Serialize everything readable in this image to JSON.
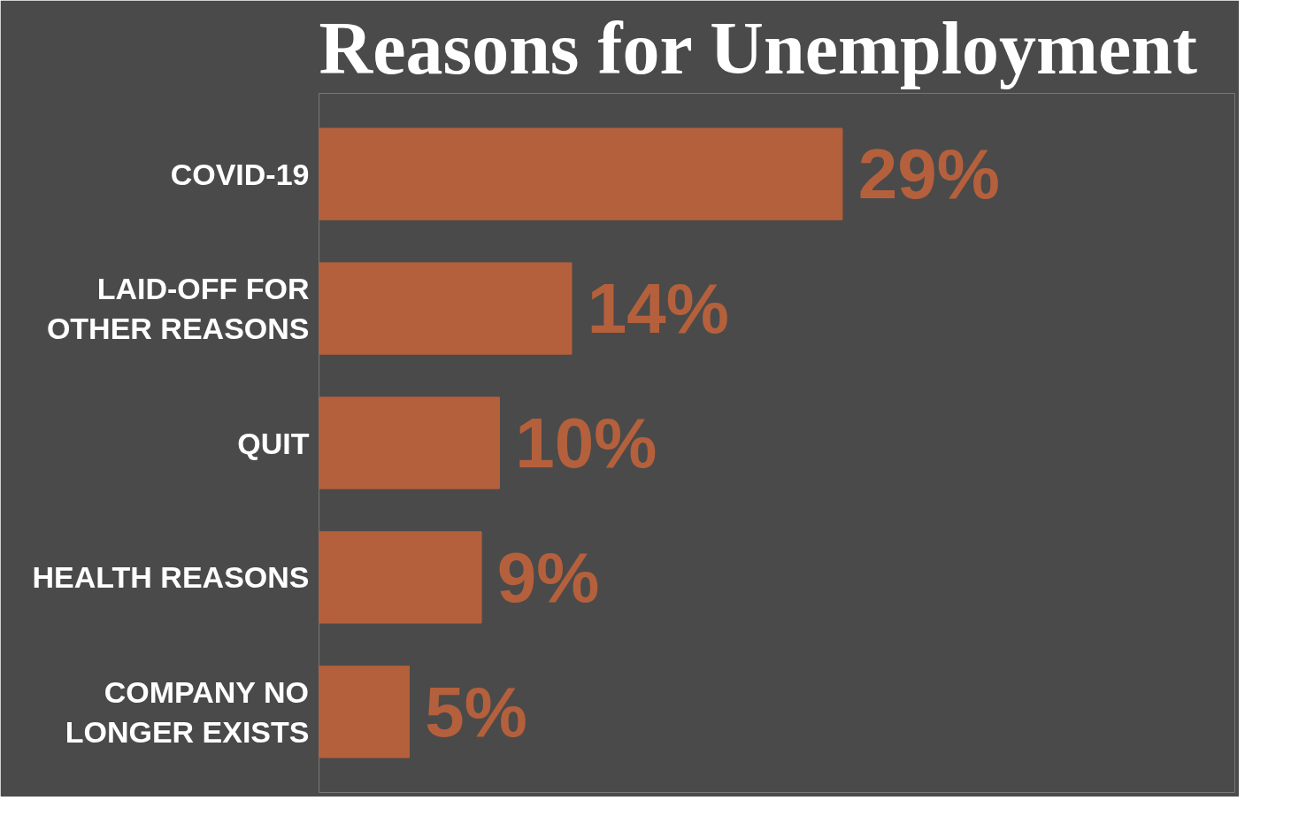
{
  "chart_data": {
    "type": "bar",
    "orientation": "horizontal",
    "title": "Reasons for Unemployment",
    "categories": [
      "COVID-19",
      "LAID-OFF FOR\nOTHER REASONS",
      "QUIT",
      "HEALTH REASONS",
      "COMPANY NO\nLONGER EXISTS"
    ],
    "values": [
      29,
      14,
      10,
      9,
      5
    ],
    "value_labels": [
      "29%",
      "14%",
      "10%",
      "9%",
      "5%"
    ],
    "color": "#b5603c",
    "grid": false
  }
}
